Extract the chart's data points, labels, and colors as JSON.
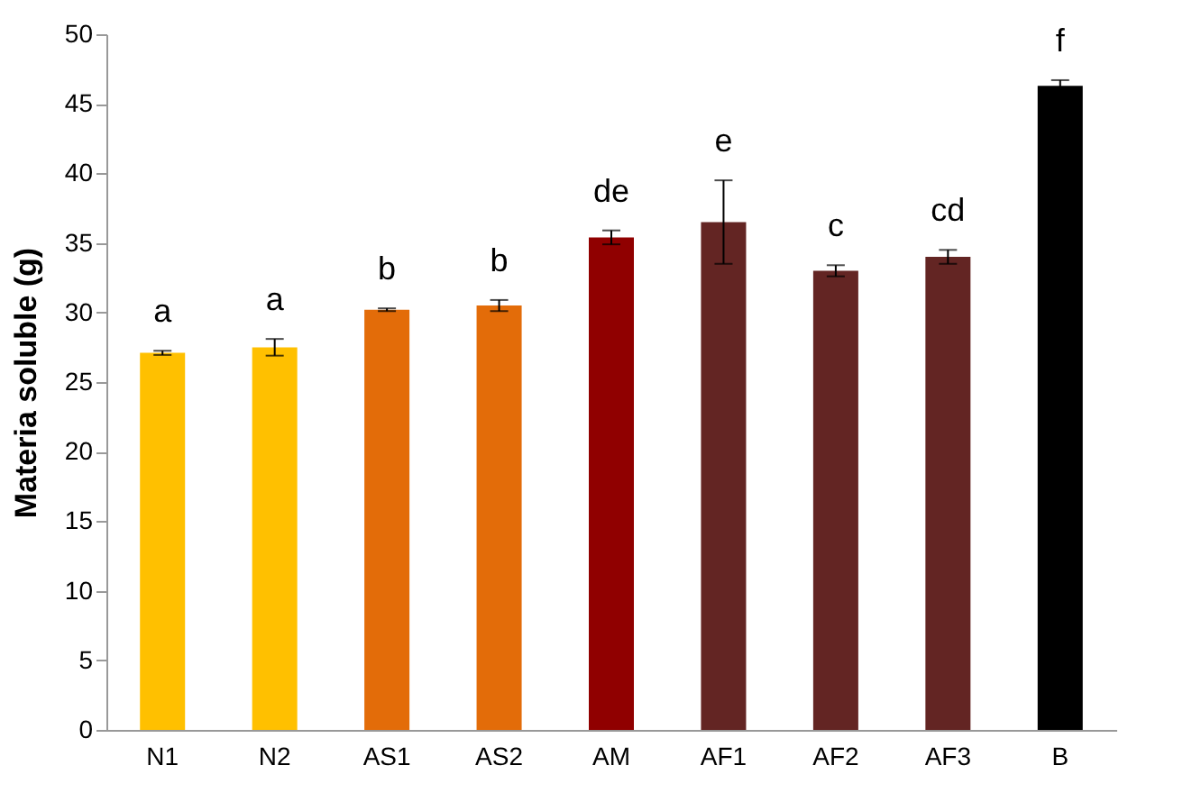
{
  "chart_data": {
    "type": "bar",
    "ylabel": "Materia soluble (g)",
    "categories": [
      "N1",
      "N2",
      "AS1",
      "AS2",
      "AM",
      "AF1",
      "AF2",
      "AF3",
      "B"
    ],
    "values": [
      27.1,
      27.5,
      30.2,
      30.5,
      35.4,
      36.5,
      33.0,
      34.0,
      46.3
    ],
    "colors": [
      "#ffc000",
      "#ffc000",
      "#e36c09",
      "#e36c09",
      "#900000",
      "#632523",
      "#632523",
      "#632523",
      "#000000"
    ],
    "errors": [
      0.15,
      0.6,
      0.1,
      0.4,
      0.5,
      3,
      0.4,
      0.5,
      0.4
    ],
    "annotations": [
      "a",
      "a",
      "b",
      "b",
      "de",
      "e",
      "c",
      "cd",
      "f"
    ],
    "ylim": [
      0,
      50
    ],
    "yticks": [
      0,
      5,
      10,
      15,
      20,
      25,
      30,
      35,
      40,
      45,
      50
    ],
    "grid": false
  }
}
